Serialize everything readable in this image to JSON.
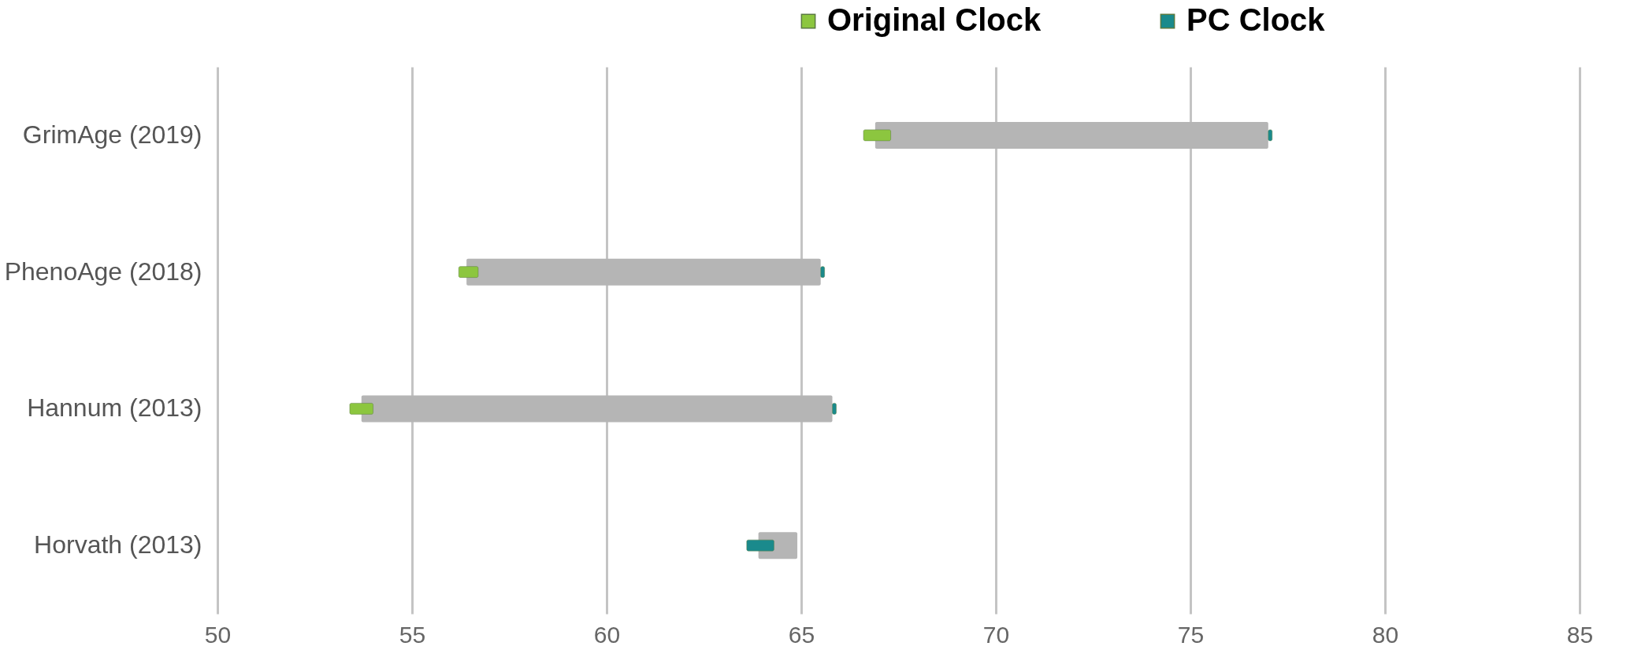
{
  "chart_data": {
    "type": "bar",
    "orientation": "horizontal",
    "categories": [
      "GrimAge (2019)",
      "PhenoAge (2018)",
      "Hannum (2013)",
      "Horvath (2013)"
    ],
    "series": [
      {
        "color": "#b5b5b5",
        "base": [
          66.9,
          56.4,
          53.7,
          63.9
        ],
        "values": [
          10.1,
          9.1,
          12.1,
          1.0
        ]
      },
      {
        "name": "Original Clock",
        "color": "#8cc63f",
        "base": [
          66.6,
          56.2,
          53.4,
          null
        ],
        "values": [
          0.7,
          0.5,
          0.6,
          null
        ]
      },
      {
        "name": "PC Clock",
        "color": "#1a8a8c",
        "base": [
          77.0,
          65.5,
          65.8,
          63.6
        ],
        "values": [
          0.1,
          0.1,
          0.1,
          0.7
        ]
      }
    ],
    "xlim": [
      50,
      85
    ],
    "xticks": [
      50,
      55,
      60,
      65,
      70,
      75,
      80,
      85
    ],
    "grid": "x",
    "legend": "top right"
  }
}
